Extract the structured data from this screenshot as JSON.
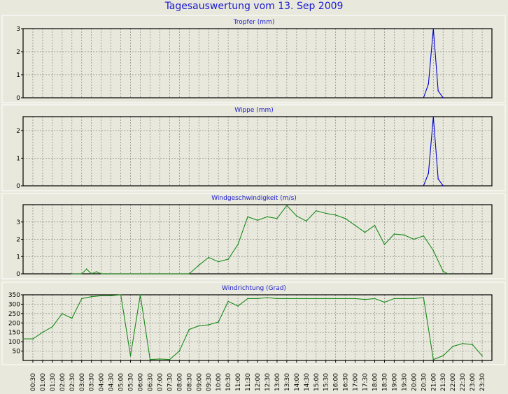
{
  "title": "Tagesauswertung vom 13. Sep 2009",
  "colors": {
    "background": "#e8e8dc",
    "title": "#1a1ad0",
    "blue_series": "#0000cc",
    "green_series": "#1a8a1a",
    "grid": "#888888",
    "panel_border": "#ffffff"
  },
  "chart_data": [
    {
      "type": "line",
      "title": "Tropfer (mm)",
      "color": "blue",
      "grid": true,
      "ylim": [
        0,
        3
      ],
      "yticks": [
        0,
        1,
        2,
        3
      ],
      "x": [
        "20:30",
        "20:45",
        "21:00",
        "21:15",
        "21:30"
      ],
      "values": [
        0,
        0.6,
        3.0,
        0.3,
        0
      ]
    },
    {
      "type": "line",
      "title": "Wippe (mm)",
      "color": "blue",
      "grid": true,
      "ylim": [
        0,
        2.5
      ],
      "yticks": [
        0,
        1,
        2
      ],
      "x": [
        "20:30",
        "20:45",
        "21:00",
        "21:15",
        "21:30"
      ],
      "values": [
        0,
        0.45,
        2.5,
        0.25,
        0
      ]
    },
    {
      "type": "line",
      "title": "Windgeschwindigkeit (m/s)",
      "color": "green",
      "grid": true,
      "ylim": [
        0,
        4
      ],
      "yticks": [
        0,
        1,
        2,
        3
      ],
      "x": [
        "02:30",
        "03:00",
        "03:15",
        "03:30",
        "03:45",
        "04:00",
        "04:15",
        "08:30",
        "09:00",
        "09:30",
        "10:00",
        "10:30",
        "11:00",
        "11:30",
        "12:00",
        "12:30",
        "13:00",
        "13:30",
        "14:00",
        "14:30",
        "15:00",
        "15:30",
        "16:00",
        "16:30",
        "17:00",
        "17:30",
        "18:00",
        "18:30",
        "19:00",
        "19:30",
        "20:00",
        "20:30",
        "21:00",
        "21:30",
        "21:45"
      ],
      "values": [
        0,
        0,
        0.28,
        0,
        0.12,
        0,
        0,
        0,
        0.5,
        0.95,
        0.7,
        0.85,
        1.7,
        3.3,
        3.1,
        3.3,
        3.2,
        3.95,
        3.35,
        3.05,
        3.65,
        3.5,
        3.4,
        3.2,
        2.8,
        2.4,
        2.8,
        1.7,
        2.3,
        2.25,
        2.0,
        2.2,
        1.35,
        0.15,
        0
      ]
    },
    {
      "type": "line",
      "title": "Windrichtung (Grad)",
      "color": "green",
      "grid": true,
      "ylim": [
        0,
        350
      ],
      "yticks": [
        50,
        100,
        150,
        200,
        250,
        300,
        350
      ],
      "x": [
        "00:00",
        "00:30",
        "01:00",
        "01:30",
        "02:00",
        "02:30",
        "03:00",
        "03:30",
        "04:00",
        "04:30",
        "05:00",
        "05:30",
        "06:00",
        "06:30",
        "07:00",
        "07:30",
        "08:00",
        "08:30",
        "09:00",
        "09:30",
        "10:00",
        "10:30",
        "11:00",
        "11:30",
        "12:00",
        "12:30",
        "13:00",
        "13:30",
        "14:00",
        "14:30",
        "15:00",
        "15:30",
        "16:00",
        "16:30",
        "17:00",
        "17:30",
        "18:00",
        "18:30",
        "19:00",
        "19:30",
        "20:00",
        "20:30",
        "21:00",
        "21:30",
        "22:00",
        "22:30",
        "23:00",
        "23:30"
      ],
      "values": [
        115,
        115,
        150,
        180,
        250,
        225,
        330,
        340,
        345,
        345,
        350,
        25,
        350,
        5,
        8,
        5,
        50,
        165,
        185,
        190,
        205,
        315,
        290,
        330,
        330,
        335,
        330,
        330,
        330,
        330,
        330,
        330,
        330,
        330,
        330,
        325,
        330,
        310,
        330,
        330,
        330,
        335,
        5,
        25,
        75,
        90,
        85,
        25
      ]
    }
  ],
  "x_axis": {
    "ticks": [
      "00:30",
      "01:00",
      "01:30",
      "02:00",
      "02:30",
      "03:00",
      "03:30",
      "04:00",
      "04:30",
      "05:00",
      "05:30",
      "06:00",
      "06:30",
      "07:00",
      "07:30",
      "08:00",
      "08:30",
      "09:00",
      "09:30",
      "10:00",
      "10:30",
      "11:00",
      "11:30",
      "12:00",
      "12:30",
      "13:00",
      "13:30",
      "14:00",
      "14:30",
      "15:00",
      "15:30",
      "16:00",
      "16:30",
      "17:00",
      "17:30",
      "18:00",
      "18:30",
      "19:00",
      "19:30",
      "20:00",
      "20:30",
      "21:00",
      "21:30",
      "22:00",
      "22:30",
      "23:00",
      "23:30"
    ]
  }
}
